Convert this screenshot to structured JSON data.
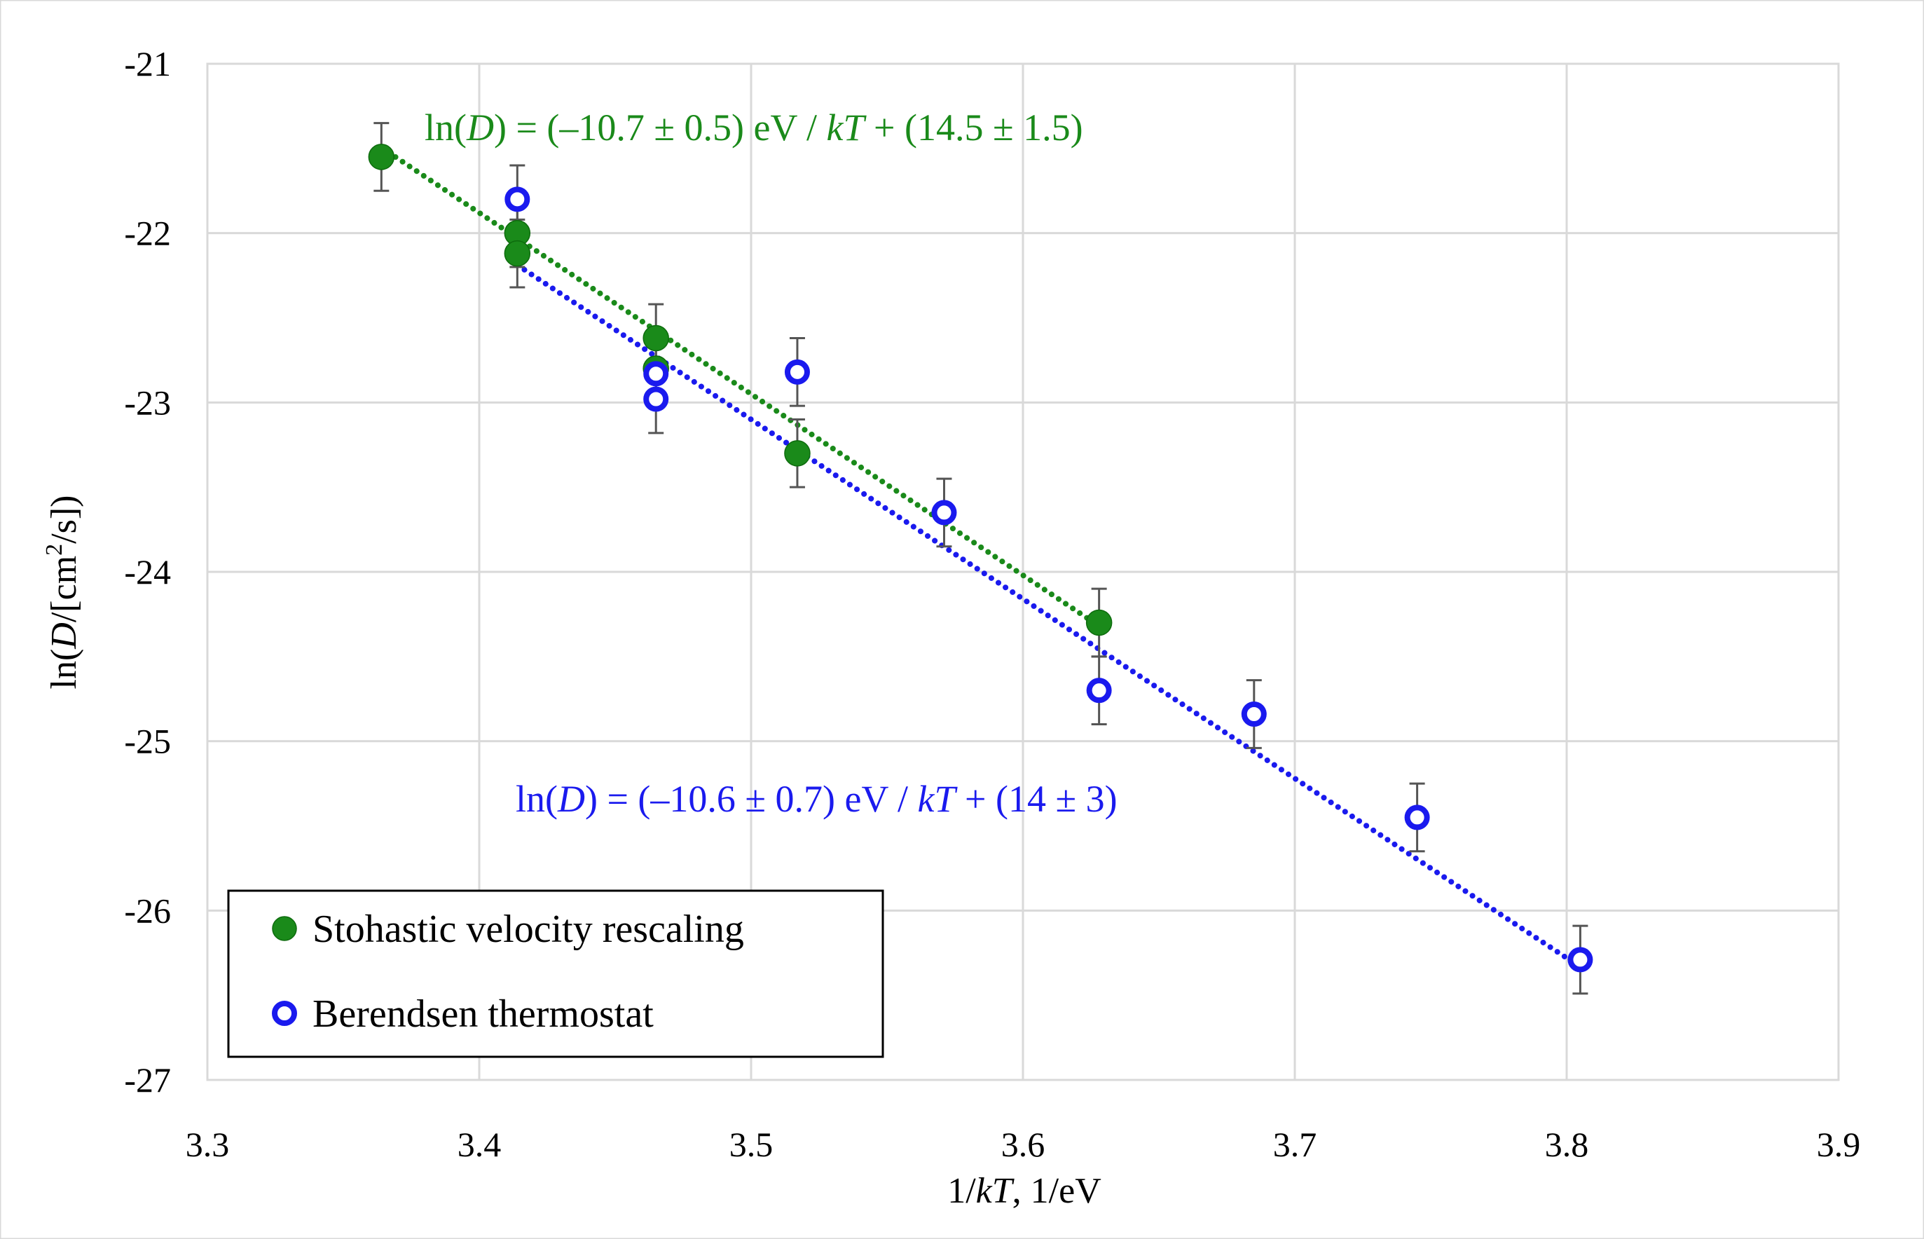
{
  "chart_data": {
    "type": "scatter",
    "xlabel_parts": [
      "1/",
      "kT",
      ", 1/eV"
    ],
    "ylabel_parts": [
      "ln(",
      "D",
      "/[cm",
      "2",
      "/s])"
    ],
    "xlim": [
      3.3,
      3.9
    ],
    "ylim": [
      -27,
      -21
    ],
    "x_ticks": [
      3.3,
      3.4,
      3.5,
      3.6,
      3.7,
      3.8,
      3.9
    ],
    "x_tick_labels": [
      "3.3",
      "3.4",
      "3.5",
      "3.6",
      "3.7",
      "3.8",
      "3.9"
    ],
    "y_ticks": [
      -21,
      -22,
      -23,
      -24,
      -25,
      -26,
      -27
    ],
    "y_tick_labels": [
      "-21",
      "-22",
      "-23",
      "-24",
      "-25",
      "-26",
      "-27"
    ],
    "grid": true,
    "legend_position": "bottom-left",
    "series": [
      {
        "name": "Stohastic velocity rescaling",
        "marker": "filled-circle",
        "color": "#1a8a1a",
        "x": [
          3.364,
          3.414,
          3.414,
          3.465,
          3.465,
          3.517,
          3.628
        ],
        "y": [
          -21.55,
          -22.0,
          -22.12,
          -22.62,
          -22.8,
          -23.3,
          -24.3
        ],
        "err": [
          0.2,
          0.2,
          0.2,
          0.2,
          0.2,
          0.2,
          0.2
        ],
        "fit": {
          "slope": -10.7,
          "intercept": 14.5,
          "x_range": [
            3.364,
            3.628
          ]
        },
        "equation_parts": [
          "ln(",
          "D",
          ") = (–10.7 ± 0.5) eV / ",
          "kT",
          " + (14.5 ± 1.5)"
        ]
      },
      {
        "name": "Berendsen thermostat",
        "marker": "open-circle",
        "color": "#1a1aee",
        "x": [
          3.414,
          3.465,
          3.465,
          3.517,
          3.571,
          3.628,
          3.685,
          3.745,
          3.805
        ],
        "y": [
          -21.8,
          -22.83,
          -22.98,
          -22.82,
          -23.65,
          -24.7,
          -24.84,
          -25.45,
          -26.29
        ],
        "err": [
          0.2,
          0.2,
          0.2,
          0.2,
          0.2,
          0.2,
          0.2,
          0.2,
          0.2
        ],
        "fit": {
          "slope": -10.6,
          "intercept": 14.0,
          "x_range": [
            3.414,
            3.805
          ]
        },
        "equation_parts": [
          "ln(",
          "D",
          ") = (–10.6 ± 0.7) eV / ",
          "kT",
          " + (14 ± 3)"
        ]
      }
    ]
  }
}
